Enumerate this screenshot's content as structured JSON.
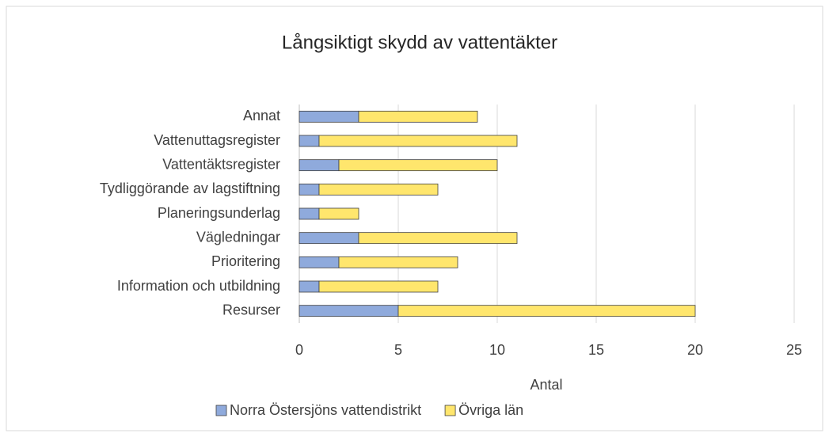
{
  "chart_data": {
    "type": "bar",
    "orientation": "horizontal",
    "stacked": true,
    "title": "Långsiktigt skydd av vattentäkter",
    "x_label": "Antal",
    "categories": [
      "Annat",
      "Vattenuttagsregister",
      "Vattentäktsregister",
      "Tydliggörande av lagstiftning",
      "Planeringsunderlag",
      "Vägledningar",
      "Prioritering",
      "Information och utbildning",
      "Resurser"
    ],
    "series": [
      {
        "name": "Norra Östersjöns vattendistrikt",
        "color": "#8faadc",
        "values": [
          3,
          1,
          2,
          1,
          1,
          3,
          2,
          1,
          5
        ]
      },
      {
        "name": "Övriga län",
        "color": "#ffe66d",
        "values": [
          6,
          10,
          8,
          6,
          2,
          8,
          6,
          6,
          15
        ]
      }
    ],
    "xlim": [
      0,
      25
    ],
    "xticks": [
      0,
      5,
      10,
      15,
      20,
      25
    ],
    "grid": true,
    "legend": "bottom"
  }
}
